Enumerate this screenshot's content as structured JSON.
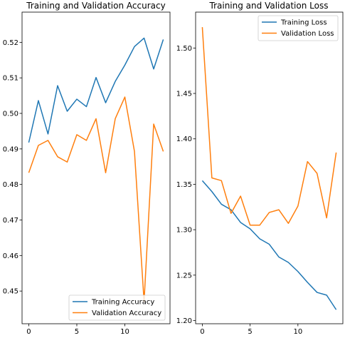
{
  "chart_data": [
    {
      "type": "line",
      "title": "Training and Validation Accuracy",
      "xlabel": "",
      "ylabel": "",
      "xlim": [
        -0.7,
        14.7
      ],
      "ylim": [
        0.4408,
        0.5285
      ],
      "xticks": [
        0,
        5,
        10
      ],
      "yticks": [
        0.45,
        0.46,
        0.47,
        0.48,
        0.49,
        0.5,
        0.51,
        0.52
      ],
      "ytick_labels": [
        "0.45",
        "0.46",
        "0.47",
        "0.48",
        "0.49",
        "0.50",
        "0.51",
        "0.52"
      ],
      "legend_position": "lower-right",
      "grid": false,
      "x": [
        0,
        1,
        2,
        3,
        4,
        5,
        6,
        7,
        8,
        9,
        10,
        11,
        12,
        13,
        14
      ],
      "series": [
        {
          "name": "Training Accuracy",
          "color": "#1f77b4",
          "values": [
            0.4918,
            0.5036,
            0.4942,
            0.5078,
            0.5006,
            0.504,
            0.5019,
            0.5101,
            0.503,
            0.509,
            0.5136,
            0.5188,
            0.5212,
            0.5125,
            0.5208
          ]
        },
        {
          "name": "Validation Accuracy",
          "color": "#ff7f0e",
          "values": [
            0.4833,
            0.491,
            0.4924,
            0.4878,
            0.4863,
            0.494,
            0.4924,
            0.4985,
            0.4833,
            0.4985,
            0.5046,
            0.4893,
            0.447,
            0.497,
            0.4893
          ]
        }
      ]
    },
    {
      "type": "line",
      "title": "Training and Validation Loss",
      "xlabel": "",
      "ylabel": "",
      "xlim": [
        -0.7,
        14.7
      ],
      "ylim": [
        1.1965,
        1.5395
      ],
      "xticks": [
        0,
        5,
        10
      ],
      "yticks": [
        1.2,
        1.25,
        1.3,
        1.35,
        1.4,
        1.45,
        1.5
      ],
      "ytick_labels": [
        "1.20",
        "1.25",
        "1.30",
        "1.35",
        "1.40",
        "1.45",
        "1.50"
      ],
      "legend_position": "upper-right",
      "grid": false,
      "x": [
        0,
        1,
        2,
        3,
        4,
        5,
        6,
        7,
        8,
        9,
        10,
        11,
        12,
        13,
        14
      ],
      "series": [
        {
          "name": "Training Loss",
          "color": "#1f77b4",
          "values": [
            1.354,
            1.342,
            1.328,
            1.322,
            1.308,
            1.301,
            1.29,
            1.284,
            1.27,
            1.264,
            1.254,
            1.242,
            1.231,
            1.228,
            1.212
          ]
        },
        {
          "name": "Validation Loss",
          "color": "#ff7f0e",
          "values": [
            1.523,
            1.357,
            1.354,
            1.318,
            1.337,
            1.305,
            1.305,
            1.319,
            1.322,
            1.307,
            1.326,
            1.375,
            1.362,
            1.313,
            1.385
          ]
        }
      ]
    }
  ]
}
